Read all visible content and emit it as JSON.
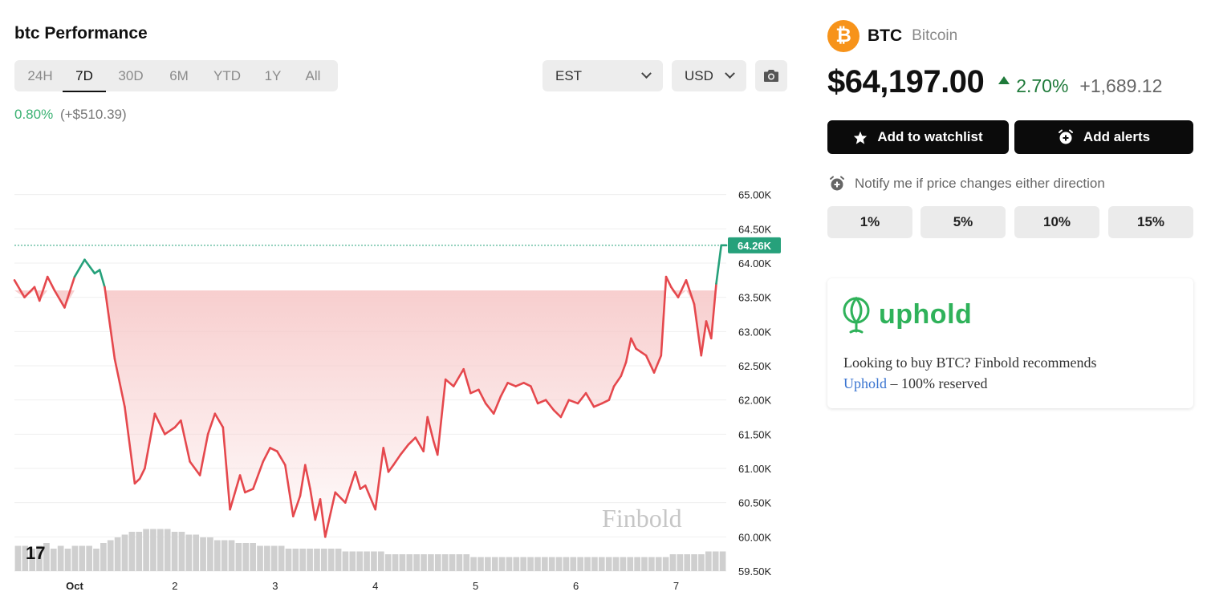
{
  "header": {
    "title": "btc Performance"
  },
  "range_tabs": [
    {
      "label": "24H",
      "active": false
    },
    {
      "label": "7D",
      "active": true
    },
    {
      "label": "30D",
      "active": false
    },
    {
      "label": "6M",
      "active": false
    },
    {
      "label": "YTD",
      "active": false
    },
    {
      "label": "1Y",
      "active": false
    },
    {
      "label": "All",
      "active": false
    }
  ],
  "timezone_select": {
    "value": "EST"
  },
  "currency_select": {
    "value": "USD"
  },
  "camera_icon": "camera-icon",
  "performance": {
    "pct": "0.80%",
    "abs": "(+$510.39)"
  },
  "chart_data": {
    "type": "line",
    "title": "",
    "ylabel": "",
    "xlabel": "",
    "ylim": [
      59500,
      65300
    ],
    "y_ticks": [
      "65.00K",
      "64.50K",
      "64.00K",
      "63.50K",
      "63.00K",
      "62.50K",
      "62.00K",
      "61.50K",
      "61.00K",
      "60.50K",
      "60.00K",
      "59.50K"
    ],
    "y_tick_values": [
      65000,
      64500,
      64000,
      63500,
      63000,
      62500,
      62000,
      61500,
      61000,
      60500,
      60000,
      59500
    ],
    "x_ticks": [
      "Oct",
      "2",
      "3",
      "4",
      "5",
      "6",
      "7"
    ],
    "x_tick_values": [
      0.6,
      1.6,
      2.6,
      3.6,
      4.6,
      5.6,
      6.6
    ],
    "current_label": "64.26K",
    "current_value": 64260,
    "baseline": 63600,
    "watermark": "Finbold",
    "tv_logo": "17",
    "colors": {
      "up": "#26a17b",
      "down": "#e5484d",
      "fill": "#f7c9c9",
      "volume": "#cfcfcf"
    },
    "x": [
      0.0,
      0.1,
      0.2,
      0.25,
      0.33,
      0.4,
      0.5,
      0.6,
      0.7,
      0.8,
      0.85,
      0.9,
      1.0,
      1.05,
      1.1,
      1.2,
      1.25,
      1.3,
      1.4,
      1.5,
      1.6,
      1.66,
      1.75,
      1.85,
      1.93,
      2.0,
      2.08,
      2.15,
      2.25,
      2.3,
      2.38,
      2.48,
      2.55,
      2.62,
      2.7,
      2.78,
      2.85,
      2.9,
      2.95,
      3.0,
      3.05,
      3.1,
      3.2,
      3.3,
      3.4,
      3.45,
      3.5,
      3.6,
      3.68,
      3.73,
      3.78,
      3.85,
      3.93,
      4.0,
      4.08,
      4.12,
      4.18,
      4.22,
      4.3,
      4.38,
      4.48,
      4.55,
      4.63,
      4.7,
      4.78,
      4.85,
      4.92,
      5.0,
      5.08,
      5.15,
      5.22,
      5.3,
      5.38,
      5.45,
      5.53,
      5.62,
      5.7,
      5.78,
      5.86,
      5.93,
      5.98,
      6.05,
      6.1,
      6.15,
      6.2,
      6.25,
      6.3,
      6.38,
      6.45,
      6.5,
      6.55,
      6.62,
      6.7,
      6.78,
      6.85,
      6.9,
      6.95,
      7.0,
      7.05,
      7.1
    ],
    "y": [
      63750,
      63500,
      63650,
      63450,
      63800,
      63600,
      63350,
      63800,
      64050,
      63850,
      63900,
      63650,
      62600,
      62250,
      61900,
      60780,
      60850,
      61000,
      61800,
      61500,
      61600,
      61700,
      61100,
      60900,
      61500,
      61800,
      61600,
      60400,
      60900,
      60650,
      60700,
      61100,
      61300,
      61250,
      61050,
      60300,
      60600,
      61050,
      60700,
      60250,
      60550,
      60000,
      60650,
      60500,
      60950,
      60700,
      60750,
      60400,
      61300,
      60950,
      61050,
      61200,
      61350,
      61450,
      61250,
      61750,
      61400,
      61200,
      62300,
      62200,
      62450,
      62100,
      62150,
      61950,
      61800,
      62050,
      62250,
      62200,
      62250,
      62200,
      61950,
      62000,
      61850,
      61750,
      62000,
      61950,
      62100,
      61900,
      61950,
      62000,
      62200,
      62350,
      62550,
      62900,
      62750,
      62700,
      62650,
      62400,
      62650,
      63800,
      63650,
      63500,
      63750,
      63400,
      62650,
      63150,
      62900,
      63700,
      64260,
      64260
    ],
    "volume": [
      9,
      9,
      8,
      9,
      10,
      8,
      9,
      8,
      9,
      9,
      9,
      8,
      10,
      11,
      12,
      13,
      14,
      14,
      15,
      15,
      15,
      15,
      14,
      14,
      13,
      13,
      12,
      12,
      11,
      11,
      11,
      10,
      10,
      10,
      9,
      9,
      9,
      9,
      8,
      8,
      8,
      8,
      8,
      8,
      8,
      8,
      7,
      7,
      7,
      7,
      7,
      7,
      6,
      6,
      6,
      6,
      6,
      6,
      6,
      6,
      6,
      6,
      6,
      6,
      5,
      5,
      5,
      5,
      5,
      5,
      5,
      5,
      5,
      5,
      5,
      5,
      5,
      5,
      5,
      5,
      5,
      5,
      5,
      5,
      5,
      5,
      5,
      5,
      5,
      5,
      5,
      5,
      6,
      6,
      6,
      6,
      6,
      7,
      7,
      7
    ]
  },
  "coin": {
    "symbol": "BTC",
    "name": "Bitcoin",
    "logo_glyph": "₿"
  },
  "price": {
    "value": "$64,197.00",
    "change_pct": "2.70%",
    "change_abs": "+1,689.12",
    "direction": "up"
  },
  "actions": {
    "watchlist_label": "Add to watchlist",
    "alerts_label": "Add alerts"
  },
  "notify": {
    "text": "Notify me if price changes either direction",
    "options": [
      "1%",
      "5%",
      "10%",
      "15%"
    ]
  },
  "promo": {
    "brand": "uphold",
    "text_before": "Looking to buy BTC? Finbold recommends",
    "link_text": "Uphold",
    "text_after": " – 100% reserved"
  }
}
